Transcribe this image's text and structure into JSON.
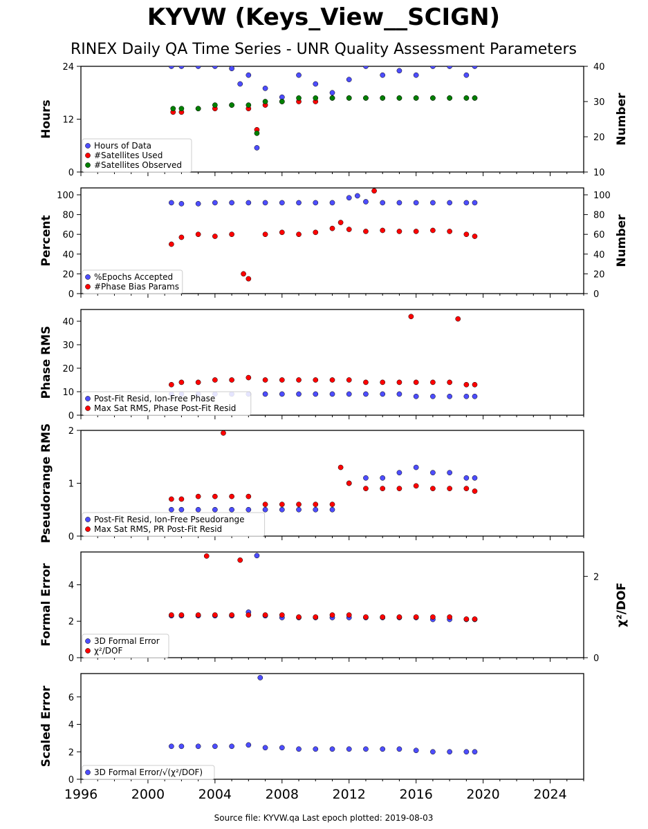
{
  "title": "KYVW (Keys_View__SCIGN)",
  "subtitle": "RINEX Daily QA Time Series - UNR Quality Assessment Parameters",
  "footer": "Source file: KYVW.qa Last epoch plotted: 2019-08-03",
  "colors": {
    "blue": "#4d4dff",
    "red": "#ff0000",
    "green": "#008000",
    "edge": "#000000"
  },
  "chart_data": [
    {
      "type": "scatter",
      "xlim": [
        1996,
        2026
      ],
      "xticks": [
        "1996",
        "2000",
        "2004",
        "2008",
        "2012",
        "2016",
        "2020",
        "2024"
      ],
      "ylabel": "Hours",
      "ylim": [
        0,
        24
      ],
      "yticks": [
        "0",
        "12",
        "24"
      ],
      "y2label": "Number",
      "y2lim": [
        10,
        40
      ],
      "y2ticks": [
        "10",
        "20",
        "30",
        "40"
      ],
      "legend": [
        "Hours of Data",
        "#Satellites Used",
        "#Satellites Observed"
      ],
      "legend_loc": "lower-left",
      "series": [
        {
          "name": "Hours of Data",
          "axis": "left",
          "color": "blue",
          "x": [
            2001.4,
            2002.0,
            2003.0,
            2004.0,
            2005.0,
            2005.5,
            2006.0,
            2006.5,
            2007.0,
            2008.0,
            2009.0,
            2010.0,
            2011.0,
            2012.0,
            2013.0,
            2014.0,
            2015.0,
            2016.0,
            2017.0,
            2018.0,
            2019.0,
            2019.5
          ],
          "y": [
            24,
            24,
            24,
            24,
            23.5,
            20,
            22,
            5.5,
            19,
            17,
            22,
            20,
            18,
            21,
            24,
            22,
            23,
            22,
            24,
            24,
            22,
            24
          ]
        },
        {
          "name": "#Satellites Used",
          "axis": "right",
          "color": "red",
          "x": [
            2001.5,
            2002.0,
            2003.0,
            2004.0,
            2005.0,
            2006.0,
            2006.5,
            2007.0,
            2008.0,
            2009.0,
            2010.0,
            2011.0,
            2012.0,
            2013.0,
            2014.0,
            2015.0,
            2016.0,
            2017.0,
            2018.0,
            2019.0,
            2019.5
          ],
          "y": [
            27,
            27,
            28,
            28,
            29,
            28,
            22,
            29,
            30,
            30,
            30,
            31,
            31,
            31,
            31,
            31,
            31,
            31,
            31,
            31,
            31
          ]
        },
        {
          "name": "#Satellites Observed",
          "axis": "right",
          "color": "green",
          "x": [
            2001.5,
            2002.0,
            2003.0,
            2004.0,
            2005.0,
            2006.0,
            2006.5,
            2007.0,
            2008.0,
            2009.0,
            2010.0,
            2011.0,
            2012.0,
            2013.0,
            2014.0,
            2015.0,
            2016.0,
            2017.0,
            2018.0,
            2019.0,
            2019.5
          ],
          "y": [
            28,
            28,
            28,
            29,
            29,
            29,
            21,
            30,
            30,
            31,
            31,
            31,
            31,
            31,
            31,
            31,
            31,
            31,
            31,
            31,
            31
          ]
        }
      ]
    },
    {
      "type": "scatter",
      "xlim": [
        1996,
        2026
      ],
      "xticks": [
        "1996",
        "2000",
        "2004",
        "2008",
        "2012",
        "2016",
        "2020",
        "2024"
      ],
      "ylabel": "Percent",
      "ylim": [
        0,
        107
      ],
      "yticks": [
        "0",
        "20",
        "40",
        "60",
        "80",
        "100"
      ],
      "y2label": "Number",
      "y2lim": [
        0,
        107
      ],
      "y2ticks": [
        "0",
        "20",
        "40",
        "60",
        "80",
        "100"
      ],
      "legend": [
        "%Epochs Accepted",
        "#Phase Bias Params"
      ],
      "legend_loc": "lower-left",
      "series": [
        {
          "name": "%Epochs Accepted",
          "axis": "left",
          "color": "blue",
          "x": [
            2001.4,
            2002.0,
            2003.0,
            2004.0,
            2005.0,
            2006.0,
            2007.0,
            2008.0,
            2009.0,
            2010.0,
            2011.0,
            2012.0,
            2012.5,
            2013.0,
            2014.0,
            2015.0,
            2016.0,
            2017.0,
            2018.0,
            2019.0,
            2019.5
          ],
          "y": [
            92,
            91,
            91,
            92,
            92,
            92,
            92,
            92,
            92,
            92,
            92,
            97,
            99,
            93,
            92,
            92,
            92,
            92,
            92,
            92,
            92
          ]
        },
        {
          "name": "#Phase Bias Params",
          "axis": "right",
          "color": "red",
          "x": [
            2001.4,
            2002.0,
            2003.0,
            2004.0,
            2005.0,
            2005.7,
            2006.0,
            2007.0,
            2008.0,
            2009.0,
            2010.0,
            2011.0,
            2011.5,
            2012.0,
            2013.0,
            2013.5,
            2014.0,
            2015.0,
            2016.0,
            2017.0,
            2018.0,
            2019.0,
            2019.5
          ],
          "y": [
            50,
            57,
            60,
            58,
            60,
            20,
            15,
            60,
            62,
            60,
            62,
            66,
            72,
            65,
            63,
            104,
            64,
            63,
            63,
            64,
            63,
            60,
            58
          ]
        }
      ]
    },
    {
      "type": "scatter",
      "xlim": [
        1996,
        2026
      ],
      "xticks": [
        "1996",
        "2000",
        "2004",
        "2008",
        "2012",
        "2016",
        "2020",
        "2024"
      ],
      "ylabel": "Phase RMS",
      "ylim": [
        0,
        45
      ],
      "yticks": [
        "0",
        "10",
        "20",
        "30",
        "40"
      ],
      "legend": [
        "Post-Fit Resid, Ion-Free Phase",
        "Max Sat RMS, Phase Post-Fit Resid"
      ],
      "legend_loc": "lower-left",
      "series": [
        {
          "name": "Post-Fit Resid, Ion-Free Phase",
          "axis": "left",
          "color": "blue",
          "x": [
            2001.4,
            2002.0,
            2003.0,
            2004.0,
            2005.0,
            2006.0,
            2007.0,
            2008.0,
            2009.0,
            2010.0,
            2011.0,
            2012.0,
            2013.0,
            2014.0,
            2015.0,
            2016.0,
            2017.0,
            2018.0,
            2019.0,
            2019.5
          ],
          "y": [
            9,
            9,
            9,
            9,
            9,
            9,
            9,
            9,
            9,
            9,
            9,
            9,
            9,
            9,
            9,
            8,
            8,
            8,
            8,
            8
          ]
        },
        {
          "name": "Max Sat RMS, Phase Post-Fit Resid",
          "axis": "left",
          "color": "red",
          "x": [
            2001.4,
            2002.0,
            2003.0,
            2004.0,
            2005.0,
            2006.0,
            2007.0,
            2008.0,
            2009.0,
            2010.0,
            2011.0,
            2012.0,
            2013.0,
            2014.0,
            2015.0,
            2015.7,
            2016.0,
            2017.0,
            2018.0,
            2018.5,
            2019.0,
            2019.5
          ],
          "y": [
            13,
            14,
            14,
            15,
            15,
            16,
            15,
            15,
            15,
            15,
            15,
            15,
            14,
            14,
            14,
            42,
            14,
            14,
            14,
            41,
            13,
            13
          ]
        }
      ]
    },
    {
      "type": "scatter",
      "xlim": [
        1996,
        2026
      ],
      "xticks": [
        "1996",
        "2000",
        "2004",
        "2008",
        "2012",
        "2016",
        "2020",
        "2024"
      ],
      "ylabel": "Pseudorange RMS",
      "ylim": [
        0,
        2
      ],
      "yticks": [
        "0",
        "1",
        "2"
      ],
      "legend": [
        "Post-Fit Resid, Ion-Free Pseudorange",
        "Max Sat RMS, PR Post-Fit Resid"
      ],
      "legend_loc": "lower-left",
      "series": [
        {
          "name": "Post-Fit Resid, Ion-Free Pseudorange",
          "axis": "left",
          "color": "blue",
          "x": [
            2001.4,
            2002.0,
            2003.0,
            2004.0,
            2005.0,
            2006.0,
            2007.0,
            2008.0,
            2009.0,
            2010.0,
            2011.0,
            2012.0,
            2013.0,
            2014.0,
            2015.0,
            2016.0,
            2017.0,
            2018.0,
            2019.0,
            2019.5
          ],
          "y": [
            0.5,
            0.5,
            0.5,
            0.5,
            0.5,
            0.5,
            0.5,
            0.5,
            0.5,
            0.5,
            0.5,
            1.0,
            1.1,
            1.1,
            1.2,
            1.3,
            1.2,
            1.2,
            1.1,
            1.1
          ]
        },
        {
          "name": "Max Sat RMS, PR Post-Fit Resid",
          "axis": "left",
          "color": "red",
          "x": [
            2001.4,
            2002.0,
            2003.0,
            2004.0,
            2004.5,
            2005.0,
            2006.0,
            2007.0,
            2008.0,
            2009.0,
            2010.0,
            2011.0,
            2011.5,
            2012.0,
            2013.0,
            2014.0,
            2015.0,
            2016.0,
            2017.0,
            2018.0,
            2019.0,
            2019.5
          ],
          "y": [
            0.7,
            0.7,
            0.75,
            0.75,
            1.95,
            0.75,
            0.75,
            0.6,
            0.6,
            0.6,
            0.6,
            0.6,
            1.3,
            1.0,
            0.9,
            0.9,
            0.9,
            0.95,
            0.9,
            0.9,
            0.9,
            0.85
          ]
        }
      ]
    },
    {
      "type": "scatter",
      "xlim": [
        1996,
        2026
      ],
      "xticks": [
        "1996",
        "2000",
        "2004",
        "2008",
        "2012",
        "2016",
        "2020",
        "2024"
      ],
      "ylabel": "Formal Error",
      "ylim": [
        0,
        5.8
      ],
      "yticks": [
        "0",
        "2",
        "4"
      ],
      "y2label": "χ²/DOF",
      "y2lim": [
        0,
        2.6
      ],
      "y2ticks": [
        "0",
        "2"
      ],
      "legend": [
        "3D Formal Error",
        "χ²/DOF"
      ],
      "legend_loc": "lower-left",
      "series": [
        {
          "name": "3D Formal Error",
          "axis": "left",
          "color": "blue",
          "x": [
            2001.4,
            2002.0,
            2003.0,
            2004.0,
            2005.0,
            2006.0,
            2006.5,
            2007.0,
            2008.0,
            2009.0,
            2010.0,
            2011.0,
            2012.0,
            2013.0,
            2014.0,
            2015.0,
            2016.0,
            2017.0,
            2018.0,
            2019.0,
            2019.5
          ],
          "y": [
            2.3,
            2.3,
            2.3,
            2.3,
            2.3,
            2.5,
            5.6,
            2.3,
            2.2,
            2.2,
            2.2,
            2.2,
            2.2,
            2.2,
            2.2,
            2.2,
            2.2,
            2.1,
            2.1,
            2.1,
            2.1
          ]
        },
        {
          "name": "χ²/DOF",
          "axis": "right",
          "color": "red",
          "x": [
            2001.4,
            2002.0,
            2003.0,
            2003.5,
            2004.0,
            2005.0,
            2005.5,
            2006.0,
            2007.0,
            2008.0,
            2009.0,
            2010.0,
            2011.0,
            2012.0,
            2013.0,
            2014.0,
            2015.0,
            2016.0,
            2017.0,
            2018.0,
            2019.0,
            2019.5
          ],
          "y": [
            1.05,
            1.05,
            1.05,
            2.5,
            1.05,
            1.05,
            2.4,
            1.05,
            1.05,
            1.05,
            1.0,
            1.0,
            1.05,
            1.05,
            1.0,
            1.0,
            1.0,
            1.0,
            1.0,
            1.0,
            0.95,
            0.95
          ]
        }
      ]
    },
    {
      "type": "scatter",
      "xlim": [
        1996,
        2026
      ],
      "xticks": [
        "1996",
        "2000",
        "2004",
        "2008",
        "2012",
        "2016",
        "2020",
        "2024"
      ],
      "ylabel": "Scaled Error",
      "ylim": [
        0,
        7.7
      ],
      "yticks": [
        "0",
        "2",
        "4",
        "6"
      ],
      "legend": [
        "3D Formal Error/√(χ²/DOF)"
      ],
      "legend_loc": "lower-left",
      "series": [
        {
          "name": "3D Formal Error/√(χ²/DOF)",
          "axis": "left",
          "color": "blue",
          "x": [
            2001.4,
            2002.0,
            2003.0,
            2004.0,
            2005.0,
            2006.0,
            2006.7,
            2007.0,
            2008.0,
            2009.0,
            2010.0,
            2011.0,
            2012.0,
            2013.0,
            2014.0,
            2015.0,
            2016.0,
            2017.0,
            2018.0,
            2019.0,
            2019.5
          ],
          "y": [
            2.4,
            2.4,
            2.4,
            2.4,
            2.4,
            2.5,
            7.4,
            2.3,
            2.3,
            2.2,
            2.2,
            2.2,
            2.2,
            2.2,
            2.2,
            2.2,
            2.1,
            2.0,
            2.0,
            2.0,
            2.0
          ]
        }
      ]
    }
  ]
}
